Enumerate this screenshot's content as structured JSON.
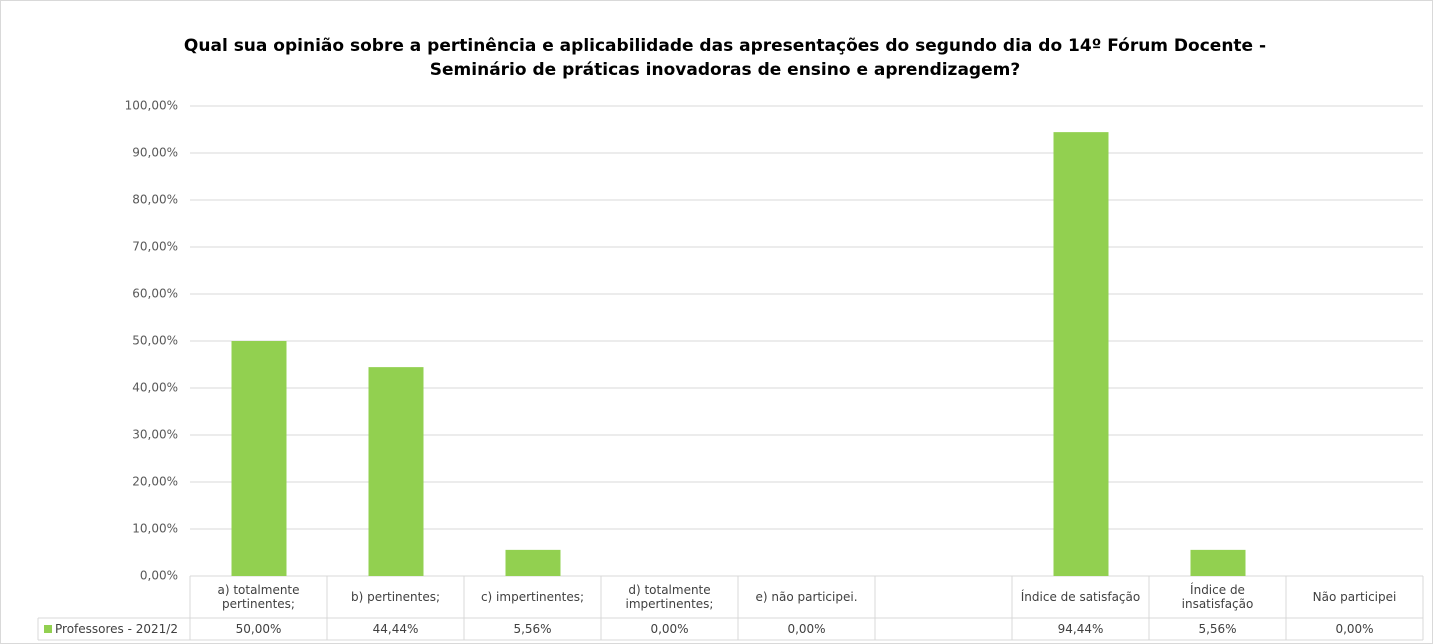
{
  "chart_data": {
    "type": "bar",
    "title": "Qual sua opinião sobre a pertinência e aplicabilidade das apresentações do segundo dia do 14º Fórum Docente - Seminário de práticas inovadoras de ensino e aprendizagem?",
    "categories": [
      "a) totalmente pertinentes;",
      "b) pertinentes;",
      "c) impertinentes;",
      "d) totalmente impertinentes;",
      "e) não participei.",
      null,
      "Índice de satisfação",
      "Índice de insatisfação",
      "Não participei"
    ],
    "series": [
      {
        "name": "Professores - 2021/2",
        "color": "#92d050",
        "values": [
          50,
          44.44,
          5.56,
          0,
          0,
          null,
          94.44,
          5.56,
          0
        ],
        "value_labels": [
          "50,00%",
          "44,44%",
          "5,56%",
          "0,00%",
          "0,00%",
          null,
          "94,44%",
          "5,56%",
          "0,00%"
        ]
      }
    ],
    "ylim": [
      0,
      100
    ],
    "yticks": [
      {
        "value": 0,
        "label": "0,00%"
      },
      {
        "value": 10,
        "label": "10,00%"
      },
      {
        "value": 20,
        "label": "20,00%"
      },
      {
        "value": 30,
        "label": "30,00%"
      },
      {
        "value": 40,
        "label": "40,00%"
      },
      {
        "value": 50,
        "label": "50,00%"
      },
      {
        "value": 60,
        "label": "60,00%"
      },
      {
        "value": 70,
        "label": "70,00%"
      },
      {
        "value": 80,
        "label": "80,00%"
      },
      {
        "value": 90,
        "label": "90,00%"
      },
      {
        "value": 100,
        "label": "100,00%"
      }
    ],
    "grid": true
  }
}
